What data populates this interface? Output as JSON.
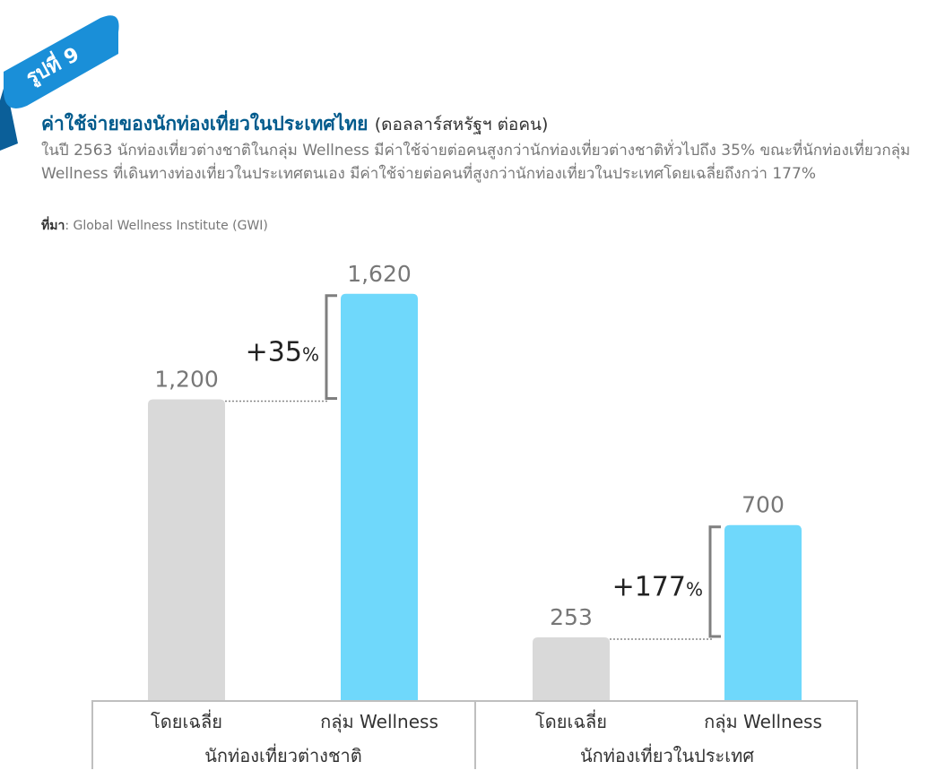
{
  "badge": "รูปที่ 9",
  "header": {
    "title": "ค่าใช้จ่ายของนักท่องเที่ยวในประเทศไทย",
    "unit": "(ดอลลาร์สหรัฐฯ ต่อคน)",
    "description": "ในปี 2563 นักท่องเที่ยวต่างชาติในกลุ่ม Wellness มีค่าใช้จ่ายต่อคนสูงกว่านักท่องเที่ยวต่างชาติทั่วไปถึง 35% ขณะที่นักท่องเที่ยวกลุ่ม Wellness ที่เดินทางท่องเที่ยวในประเทศตนเอง มีค่าใช้จ่ายต่อคนที่สูงกว่านักท่องเที่ยวในประเทศโดยเฉลี่ยถึงกว่า 177%",
    "source_label": "ที่มา",
    "source_text": ": Global Wellness Institute (GWI)"
  },
  "colors": {
    "ribbon": "#1a8fd8",
    "ribbon_dark": "#0b5f99",
    "title": "#005a8c",
    "average_bar": "#d9d9d9",
    "wellness_bar": "#6fd8fb",
    "bracket": "#7f7f7f",
    "axis": "#bfbfbf"
  },
  "chart_data": {
    "type": "bar",
    "ylim": [
      0,
      1700
    ],
    "groups": [
      {
        "label": "นักท่องเที่ยวต่างชาติ",
        "bars": [
          {
            "label": "โดยเฉลี่ย",
            "value": 1200,
            "value_label": "1,200",
            "kind": "average"
          },
          {
            "label": "กลุ่ม Wellness",
            "value": 1620,
            "value_label": "1,620",
            "kind": "wellness"
          }
        ],
        "difference": {
          "number": "+35",
          "unit": "%"
        }
      },
      {
        "label": "นักท่องเที่ยวในประเทศ",
        "bars": [
          {
            "label": "โดยเฉลี่ย",
            "value": 253,
            "value_label": "253",
            "kind": "average"
          },
          {
            "label": "กลุ่ม Wellness",
            "value": 700,
            "value_label": "700",
            "kind": "wellness"
          }
        ],
        "difference": {
          "number": "+177",
          "unit": "%"
        }
      }
    ]
  }
}
